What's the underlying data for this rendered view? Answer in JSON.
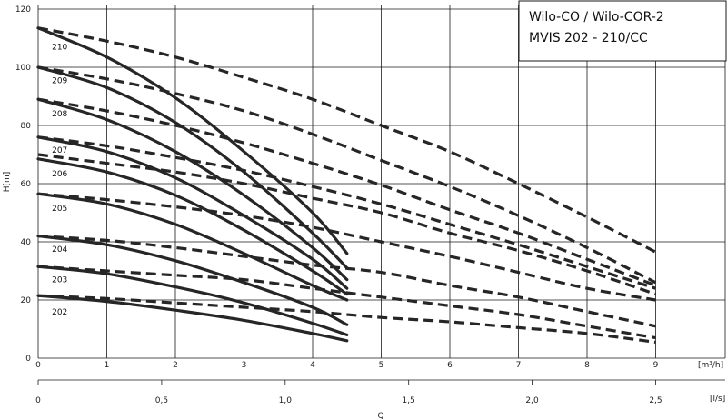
{
  "chart_data": {
    "type": "line",
    "title": [
      "Wilo-CO / Wilo-COR-2",
      "MVIS 202 - 210/CC"
    ],
    "ylabel": "H[m]",
    "xlabel": "Q",
    "x_unit": "[m³/h]",
    "x2_unit": "[l/s]",
    "xlim": [
      0,
      10
    ],
    "ylim": [
      0,
      120
    ],
    "x_ticks": [
      "0",
      "1",
      "2",
      "3",
      "4",
      "5",
      "6",
      "7",
      "8",
      "9"
    ],
    "y_ticks": [
      "0",
      "20",
      "40",
      "60",
      "80",
      "100",
      "120"
    ],
    "x2_ticks": [
      {
        "label": "0",
        "value": 0
      },
      {
        "label": "0,5",
        "value": 1.8
      },
      {
        "label": "1,0",
        "value": 3.6
      },
      {
        "label": "1,5",
        "value": 5.4
      },
      {
        "label": "2,0",
        "value": 7.2
      },
      {
        "label": "2,5",
        "value": 9.0
      }
    ],
    "grid": true,
    "series": [
      {
        "name": "202",
        "label_x": 0.2,
        "label_y": 16,
        "pump": [
          [
            0,
            21.5
          ],
          [
            1,
            19.5
          ],
          [
            2,
            16.5
          ],
          [
            3,
            13
          ],
          [
            4,
            8.5
          ],
          [
            4.5,
            6
          ]
        ],
        "system": [
          [
            0,
            21.5
          ],
          [
            1,
            20.5
          ],
          [
            2,
            19
          ],
          [
            3,
            17.5
          ],
          [
            4,
            16
          ],
          [
            5,
            14
          ],
          [
            6,
            12.5
          ],
          [
            7,
            10.5
          ],
          [
            8,
            8.5
          ],
          [
            9,
            5.5
          ]
        ]
      },
      {
        "name": "203",
        "label_x": 0.2,
        "label_y": 27,
        "pump": [
          [
            0,
            31.5
          ],
          [
            1,
            29
          ],
          [
            2,
            24.5
          ],
          [
            3,
            19
          ],
          [
            4,
            12
          ],
          [
            4.5,
            8
          ]
        ],
        "system": [
          [
            0,
            31.5
          ],
          [
            1,
            30
          ],
          [
            2,
            28.5
          ],
          [
            3,
            27
          ],
          [
            4,
            24
          ],
          [
            5,
            21
          ],
          [
            6,
            18
          ],
          [
            7,
            15
          ],
          [
            8,
            11
          ],
          [
            9,
            7
          ]
        ]
      },
      {
        "name": "204",
        "label_x": 0.2,
        "label_y": 37.5,
        "pump": [
          [
            0,
            42
          ],
          [
            1,
            39
          ],
          [
            2,
            33.5
          ],
          [
            3,
            26
          ],
          [
            4,
            17.5
          ],
          [
            4.5,
            11.5
          ]
        ],
        "system": [
          [
            0,
            42
          ],
          [
            1,
            40.5
          ],
          [
            2,
            38
          ],
          [
            3,
            35
          ],
          [
            4,
            32
          ],
          [
            5,
            29.5
          ],
          [
            6,
            25
          ],
          [
            7,
            21
          ],
          [
            8,
            16
          ],
          [
            9,
            11
          ]
        ]
      },
      {
        "name": "205",
        "label_x": 0.2,
        "label_y": 51.5,
        "pump": [
          [
            0,
            56.5
          ],
          [
            1,
            53
          ],
          [
            2,
            46
          ],
          [
            3,
            36
          ],
          [
            4,
            25
          ],
          [
            4.5,
            20
          ]
        ],
        "system": [
          [
            0,
            56.5
          ],
          [
            1,
            54.5
          ],
          [
            2,
            52
          ],
          [
            3,
            49
          ],
          [
            4,
            45
          ],
          [
            5,
            40
          ],
          [
            6,
            35
          ],
          [
            7,
            29.5
          ],
          [
            8,
            24
          ],
          [
            9,
            20
          ]
        ]
      },
      {
        "name": "206",
        "label_x": 0.2,
        "label_y": 63.5,
        "pump": [
          [
            0,
            68.5
          ],
          [
            1,
            64
          ],
          [
            2,
            56
          ],
          [
            3,
            44
          ],
          [
            4,
            30
          ],
          [
            4.5,
            22
          ]
        ],
        "system": [
          [
            0,
            70
          ],
          [
            1,
            67
          ],
          [
            2,
            64
          ],
          [
            3,
            60
          ],
          [
            4,
            55
          ],
          [
            5,
            50
          ],
          [
            6,
            43
          ],
          [
            7,
            37
          ],
          [
            8,
            30
          ],
          [
            9,
            22
          ]
        ]
      },
      {
        "name": "207",
        "label_x": 0.2,
        "label_y": 71.5,
        "pump": [
          [
            0,
            76
          ],
          [
            1,
            71
          ],
          [
            2,
            62
          ],
          [
            3,
            49
          ],
          [
            4,
            34
          ],
          [
            4.5,
            24
          ]
        ],
        "system": [
          [
            0,
            76
          ],
          [
            1,
            73
          ],
          [
            2,
            69
          ],
          [
            3,
            64.5
          ],
          [
            4,
            59
          ],
          [
            5,
            53
          ],
          [
            6,
            46
          ],
          [
            7,
            39
          ],
          [
            8,
            31.5
          ],
          [
            9,
            24
          ]
        ]
      },
      {
        "name": "208",
        "label_x": 0.2,
        "label_y": 84,
        "pump": [
          [
            0,
            89
          ],
          [
            1,
            82
          ],
          [
            2,
            71
          ],
          [
            3,
            56
          ],
          [
            4,
            38
          ],
          [
            4.5,
            27
          ]
        ],
        "system": [
          [
            0,
            89
          ],
          [
            1,
            85
          ],
          [
            2,
            80
          ],
          [
            3,
            74
          ],
          [
            4,
            67
          ],
          [
            5,
            59.5
          ],
          [
            6,
            51
          ],
          [
            7,
            43
          ],
          [
            8,
            34
          ],
          [
            9,
            25
          ]
        ]
      },
      {
        "name": "209",
        "label_x": 0.2,
        "label_y": 95.5,
        "pump": [
          [
            0,
            100
          ],
          [
            1,
            93
          ],
          [
            2,
            81
          ],
          [
            3,
            64
          ],
          [
            4,
            43
          ],
          [
            4.5,
            31
          ]
        ],
        "system": [
          [
            0,
            100
          ],
          [
            1,
            96
          ],
          [
            2,
            91
          ],
          [
            3,
            85
          ],
          [
            4,
            77
          ],
          [
            5,
            68
          ],
          [
            6,
            59
          ],
          [
            7,
            49
          ],
          [
            8,
            38
          ],
          [
            9,
            26
          ]
        ]
      },
      {
        "name": "210",
        "label_x": 0.2,
        "label_y": 107,
        "pump": [
          [
            0,
            113.5
          ],
          [
            1,
            103.5
          ],
          [
            2,
            89.5
          ],
          [
            3,
            71
          ],
          [
            4,
            50
          ],
          [
            4.5,
            36
          ]
        ],
        "system": [
          [
            0,
            113.5
          ],
          [
            1,
            109
          ],
          [
            2,
            103.5
          ],
          [
            3,
            96.5
          ],
          [
            4,
            89
          ],
          [
            5,
            80
          ],
          [
            6,
            71
          ],
          [
            7,
            60
          ],
          [
            8,
            48.5
          ],
          [
            9,
            36.5
          ]
        ]
      }
    ]
  }
}
